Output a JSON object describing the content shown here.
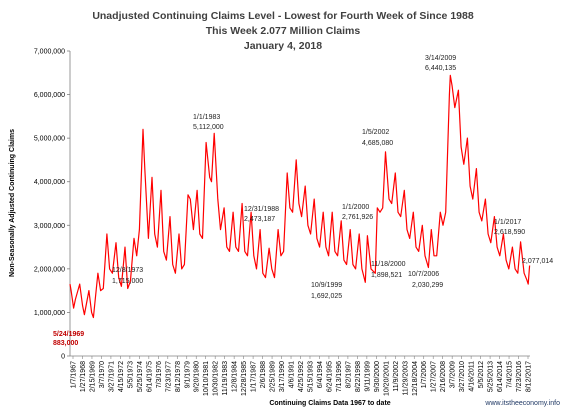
{
  "chart_data": {
    "type": "line",
    "title_lines": [
      "Unadjusted Continuing Claims Level - Lowest for Fourth Week of  Since 1988",
      "This Week 2.077 Million Claims",
      "January 4, 2018"
    ],
    "xlabel": "Continuing Claims Data 1967 to date",
    "ylabel": "Non-Seasonally Adjusted Continuing Claims",
    "ylim": [
      0,
      7000000
    ],
    "y_ticks": [
      "0",
      "1,000,000",
      "2,000,000",
      "3,000,000",
      "4,000,000",
      "5,000,000",
      "6,000,000",
      "7,000,000"
    ],
    "x_ticks": [
      "1/7/1967",
      "1/27/1968",
      "2/15/1969",
      "3/7/1970",
      "3/27/1971",
      "4/15/1972",
      "5/5/1973",
      "5/25/1974",
      "6/14/1975",
      "7/3/1976",
      "7/23/1977",
      "8/12/1978",
      "9/1/1979",
      "9/20/1980",
      "10/10/1981",
      "10/30/1982",
      "11/19/1983",
      "12/8/1984",
      "12/28/1985",
      "1/17/1987",
      "2/6/1988",
      "2/25/1989",
      "3/17/1990",
      "4/6/1991",
      "4/25/1992",
      "5/15/1993",
      "6/4/1994",
      "6/24/1995",
      "7/13/1996",
      "8/2/1997",
      "8/22/1998",
      "9/11/1999",
      "9/30/2000",
      "10/20/2001",
      "11/9/2002",
      "11/29/2003",
      "12/18/2004",
      "1/7/2006",
      "1/27/2007",
      "2/16/2008",
      "3/7/2009",
      "3/27/2010",
      "4/16/2011",
      "5/5/2012",
      "5/25/2013",
      "6/14/2014",
      "7/4/2015",
      "7/23/2016",
      "8/12/2017"
    ],
    "series_color": "#ff0000",
    "grid": false,
    "series": [
      {
        "x": [
          1967.0,
          1967.12,
          1967.4,
          1967.6,
          1968.08,
          1968.4,
          1968.6,
          1969.1,
          1969.4,
          1969.6,
          1970.1,
          1970.4,
          1970.7,
          1971.1,
          1971.4,
          1971.7,
          1972.1,
          1972.4,
          1972.7,
          1973.1,
          1973.4,
          1973.7,
          1974.1,
          1974.4,
          1974.7,
          1975.1,
          1975.3,
          1975.7,
          1976.1,
          1976.4,
          1976.7,
          1977.1,
          1977.4,
          1977.7,
          1978.1,
          1978.4,
          1978.7,
          1979.1,
          1979.4,
          1979.7,
          1980.1,
          1980.35,
          1980.7,
          1981.1,
          1981.4,
          1981.7,
          1982.1,
          1982.5,
          1982.7,
          1983.0,
          1983.4,
          1983.7,
          1984.1,
          1984.4,
          1984.7,
          1985.1,
          1985.4,
          1985.7,
          1986.1,
          1986.4,
          1986.7,
          1987.1,
          1987.4,
          1987.7,
          1988.1,
          1988.4,
          1988.7,
          1989.1,
          1989.4,
          1989.7,
          1990.1,
          1990.4,
          1990.7,
          1991.1,
          1991.4,
          1991.7,
          1992.1,
          1992.4,
          1992.7,
          1993.1,
          1993.4,
          1993.7,
          1994.1,
          1994.4,
          1994.7,
          1995.1,
          1995.4,
          1995.7,
          1996.1,
          1996.4,
          1996.7,
          1997.1,
          1997.4,
          1997.7,
          1998.1,
          1998.4,
          1998.7,
          1999.1,
          1999.4,
          1999.77,
          2000.0,
          2000.4,
          2000.88,
          2001.1,
          2001.4,
          2001.7,
          2002.01,
          2002.4,
          2002.7,
          2003.1,
          2003.4,
          2003.7,
          2004.1,
          2004.4,
          2004.7,
          2005.1,
          2005.4,
          2005.7,
          2006.1,
          2006.4,
          2006.77,
          2007.1,
          2007.4,
          2007.7,
          2008.1,
          2008.4,
          2008.7,
          2009.1,
          2009.2,
          2009.4,
          2009.7,
          2010.1,
          2010.4,
          2010.7,
          2011.1,
          2011.4,
          2011.7,
          2012.1,
          2012.4,
          2012.7,
          2013.1,
          2013.4,
          2013.7,
          2014.1,
          2014.4,
          2014.7,
          2015.1,
          2015.4,
          2015.7,
          2016.1,
          2016.4,
          2016.7,
          2017.01,
          2017.4,
          2017.7,
          2017.85,
          2018.01
        ],
        "y": [
          1650000,
          1500000,
          1100000,
          1300000,
          1650000,
          1150000,
          950000,
          1500000,
          1000000,
          883000,
          1900000,
          1500000,
          1550000,
          2800000,
          2000000,
          1900000,
          2600000,
          1800000,
          1600000,
          2500000,
          1550000,
          1715000,
          2700000,
          2300000,
          2900000,
          5200000,
          4300000,
          2700000,
          4100000,
          2800000,
          2500000,
          3800000,
          2400000,
          2200000,
          3200000,
          2100000,
          1900000,
          2800000,
          2000000,
          2100000,
          3700000,
          3600000,
          2900000,
          3800000,
          2800000,
          2700000,
          4900000,
          4100000,
          4000000,
          5112000,
          3600000,
          2900000,
          3400000,
          2500000,
          2400000,
          3300000,
          2500000,
          2400000,
          3500000,
          2400000,
          2300000,
          3300000,
          2300000,
          2000000,
          2900000,
          1900000,
          1800000,
          2473187,
          2000000,
          1800000,
          2900000,
          2300000,
          2400000,
          4200000,
          3400000,
          3300000,
          4500000,
          3500000,
          3200000,
          3900000,
          3000000,
          2800000,
          3600000,
          2700000,
          2500000,
          3300000,
          2500000,
          2300000,
          3300000,
          2400000,
          2300000,
          3100000,
          2200000,
          2100000,
          2900000,
          2100000,
          2000000,
          2800000,
          2000000,
          1692025,
          2761926,
          2000000,
          1898521,
          3400000,
          3300000,
          3400000,
          4685080,
          3600000,
          3500000,
          4200000,
          3300000,
          3200000,
          3800000,
          2900000,
          2700000,
          3300000,
          2500000,
          2400000,
          3000000,
          2300000,
          2030299,
          2900000,
          2300000,
          2300000,
          3300000,
          3000000,
          3300000,
          6000000,
          6440135,
          6200000,
          5700000,
          6100000,
          4800000,
          4400000,
          5000000,
          3900000,
          3600000,
          4300000,
          3300000,
          3100000,
          3600000,
          2800000,
          2600000,
          3200000,
          2500000,
          2300000,
          2800000,
          2200000,
          2000000,
          2500000,
          2000000,
          1900000,
          2618590,
          1900000,
          1750000,
          1650000,
          2077014
        ]
      }
    ],
    "annotations": [
      {
        "label": "5/24/1969",
        "value": "883,000",
        "x": 1969.39,
        "y": 883000,
        "color": "red"
      },
      {
        "label": "12/8/1973",
        "value": "1,715,000",
        "x": 1973.94,
        "y": 1715000,
        "color": "black"
      },
      {
        "label": "1/1/1983",
        "value": "5,112,000",
        "x": 1983.0,
        "y": 5112000,
        "color": "black"
      },
      {
        "label": "12/31/1988",
        "value": "2,473,187",
        "x": 1988.99,
        "y": 2473187,
        "color": "black"
      },
      {
        "label": "10/9/1999",
        "value": "1,692,025",
        "x": 1999.77,
        "y": 1692025,
        "color": "black"
      },
      {
        "label": "1/1/2000",
        "value": "2,761,926",
        "x": 2000.0,
        "y": 2761926,
        "color": "black"
      },
      {
        "label": "11/18/2000",
        "value": "1,898,521",
        "x": 2000.88,
        "y": 1898521,
        "color": "black"
      },
      {
        "label": "1/5/2002",
        "value": "4,685,080",
        "x": 2002.01,
        "y": 4685080,
        "color": "black"
      },
      {
        "label": "10/7/2006",
        "value": "2,030,299",
        "x": 2006.77,
        "y": 2030299,
        "color": "black"
      },
      {
        "label": "3/14/2009",
        "value": "6,440,135",
        "x": 2009.2,
        "y": 6440135,
        "color": "black"
      },
      {
        "label": "1/1/2017",
        "value": "2,618,590",
        "x": 2017.0,
        "y": 2618590,
        "color": "black"
      },
      {
        "label": "",
        "value": "2,077,014",
        "x": 2018.01,
        "y": 2077014,
        "color": "black"
      }
    ],
    "credit": "www.itstheeconomy.info"
  }
}
